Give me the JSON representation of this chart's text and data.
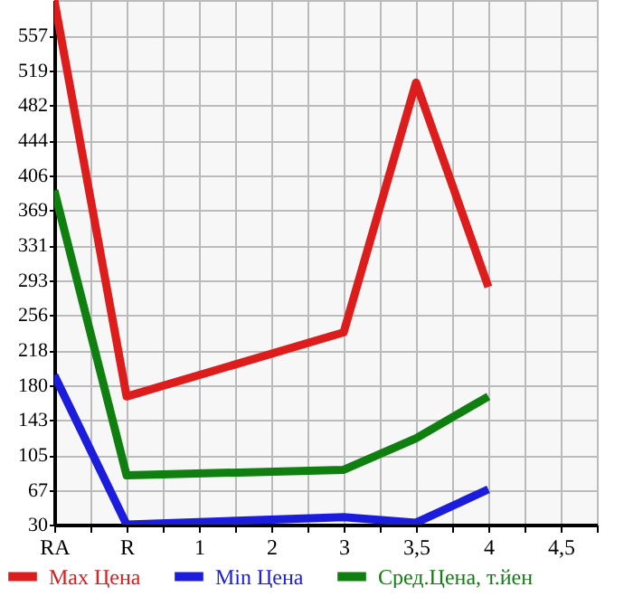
{
  "chart_data": {
    "type": "line",
    "categories": [
      "RA",
      "R",
      "1",
      "2",
      "3",
      "3,5",
      "4",
      "4,5"
    ],
    "ylim": [
      30,
      595
    ],
    "yticks": [
      30,
      67,
      105,
      143,
      180,
      218,
      256,
      293,
      331,
      369,
      406,
      444,
      482,
      519,
      557
    ],
    "grid": true,
    "legend": "bottom",
    "marker": "none",
    "line_style": "solid",
    "series": [
      {
        "name": "Max Цена",
        "color": "#dd1c1c",
        "values": [
          595,
          168,
          null,
          null,
          237,
          506,
          286,
          null
        ]
      },
      {
        "name": "Min Цена",
        "color": "#1c1cdd",
        "values": [
          191,
          30,
          null,
          null,
          38,
          32,
          68,
          null
        ]
      },
      {
        "name": "Сред.Цена, т.йен",
        "color": "#0f7f0f",
        "values": [
          390,
          83,
          null,
          null,
          89,
          123,
          168,
          null
        ]
      }
    ]
  }
}
